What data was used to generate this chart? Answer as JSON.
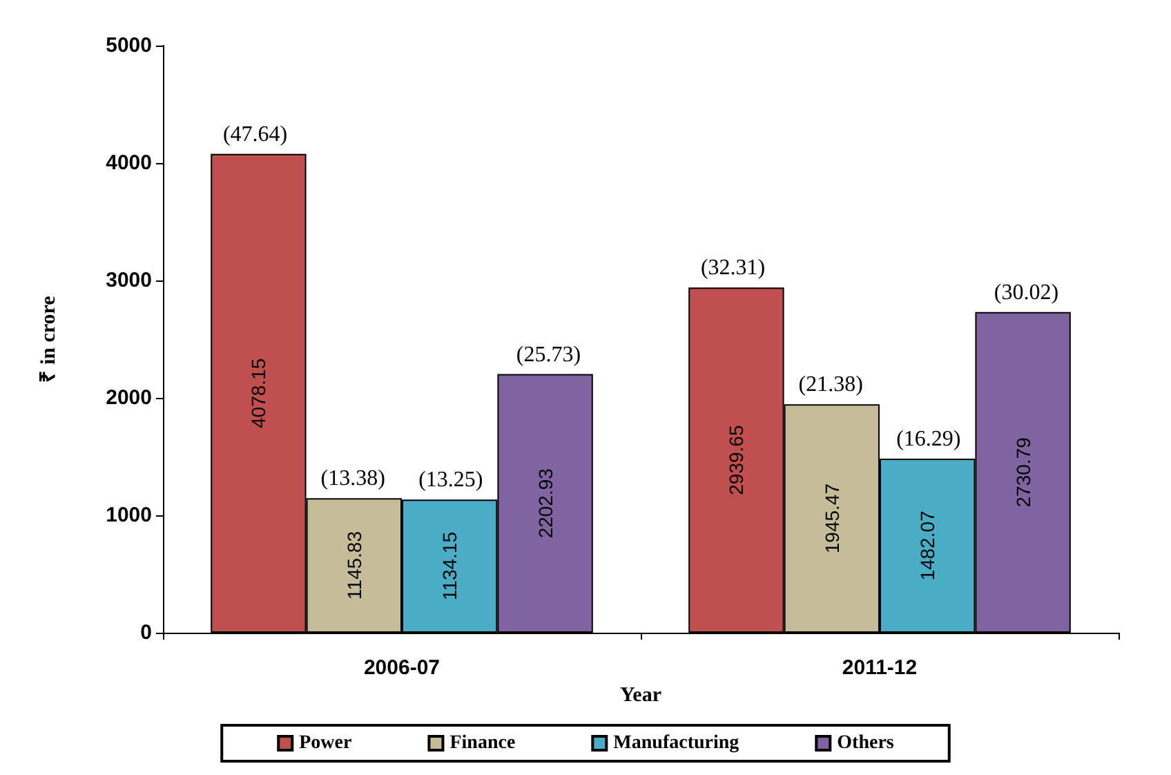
{
  "chart_data": {
    "type": "bar",
    "xlabel": "Year",
    "ylabel": "₹ in crore",
    "categories": [
      "2006-07",
      "2011-12"
    ],
    "series": [
      {
        "name": "Power",
        "color": "#c0504d",
        "values": [
          4078.15,
          2939.65
        ]
      },
      {
        "name": "Finance",
        "color": "#c4bd97",
        "values": [
          1145.83,
          1945.47
        ]
      },
      {
        "name": "Manufacturing",
        "color": "#4bacc6",
        "values": [
          1134.15,
          1482.07
        ]
      },
      {
        "name": "Others",
        "color": "#8064a2",
        "values": [
          2202.93,
          2730.79
        ]
      }
    ],
    "annotations": [
      "(47.64)",
      "(13.38)",
      "(13.25)",
      "(25.73)",
      "(32.31)",
      "(21.38)",
      "(16.29)",
      "(30.02)"
    ],
    "ylim": [
      0,
      5000
    ],
    "yticks": [
      0,
      1000,
      2000,
      3000,
      4000,
      5000
    ],
    "data_labels": true,
    "grid": false,
    "legend": "bottom"
  }
}
